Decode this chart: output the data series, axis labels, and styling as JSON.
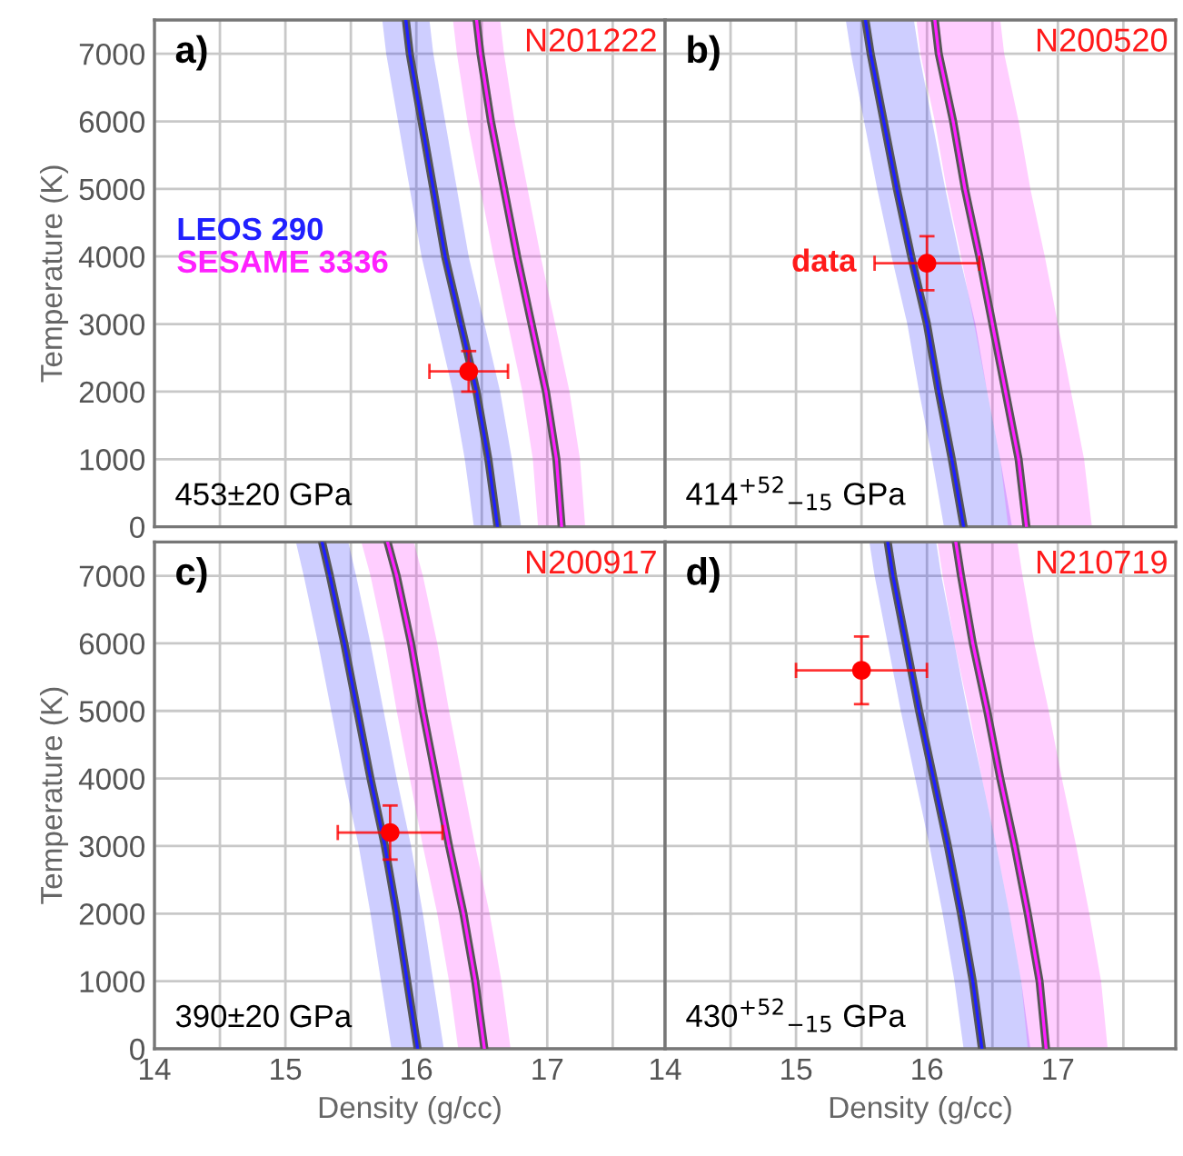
{
  "chart_data": [
    {
      "type": "line",
      "orientation": "horizontal",
      "xlabel": null,
      "ylabel": "Temperature (K)",
      "xlim": [
        14,
        17.9
      ],
      "ylim": [
        0,
        7500
      ],
      "xticks": [
        14,
        {
          "value": 14.5,
          "label": null
        },
        15,
        {
          "value": 15.5,
          "label": null
        },
        16,
        {
          "value": 16.5,
          "label": null
        },
        17,
        {
          "value": 17.5,
          "label": null
        }
      ],
      "yticks": [
        0,
        1000,
        2000,
        3000,
        4000,
        5000,
        6000,
        7000
      ],
      "grid": true,
      "tick_labels": "y",
      "legend": "left",
      "annotations": [
        "a)",
        "N201222",
        "453±20 GPa"
      ],
      "series": [
        {
          "name": "LEOS 290",
          "color": "#2020ff",
          "x": [
            0,
            1000,
            2000,
            3000,
            4000,
            5000,
            6000,
            7000,
            7500
          ],
          "values": [
            16.62,
            16.55,
            16.46,
            16.34,
            16.22,
            16.13,
            16.04,
            15.95,
            15.92
          ],
          "lower": [
            16.44,
            16.37,
            16.28,
            16.16,
            16.04,
            15.95,
            15.86,
            15.77,
            15.74
          ],
          "upper": [
            16.8,
            16.73,
            16.64,
            16.52,
            16.4,
            16.31,
            16.22,
            16.13,
            16.1
          ]
        },
        {
          "name": "SESAME 3336",
          "color": "#ff20ff",
          "x": [
            0,
            1000,
            2000,
            3000,
            4000,
            5000,
            6000,
            7000,
            7500
          ],
          "values": [
            17.11,
            17.07,
            16.99,
            16.88,
            16.77,
            16.67,
            16.57,
            16.49,
            16.46
          ],
          "lower": [
            16.93,
            16.89,
            16.81,
            16.7,
            16.59,
            16.49,
            16.39,
            16.31,
            16.28
          ],
          "upper": [
            17.29,
            17.25,
            17.17,
            17.06,
            16.95,
            16.85,
            16.75,
            16.67,
            16.64
          ]
        },
        {
          "type": "scatter",
          "color": "#ff0000",
          "x": [
            2300
          ],
          "values": [
            16.4
          ],
          "errors": [
            0.3
          ],
          "xerrors": [
            300
          ]
        }
      ]
    },
    {
      "type": "line",
      "orientation": "horizontal",
      "xlim": [
        14,
        17.9
      ],
      "ylim": [
        0,
        7500
      ],
      "xticks": [
        14,
        {
          "value": 14.5,
          "label": null
        },
        15,
        {
          "value": 15.5,
          "label": null
        },
        16,
        {
          "value": 16.5,
          "label": null
        },
        17,
        {
          "value": 17.5,
          "label": null
        }
      ],
      "yticks": [
        0,
        1000,
        2000,
        3000,
        4000,
        5000,
        6000,
        7000
      ],
      "grid": true,
      "tick_labels": false,
      "annotations": [
        "b)",
        "N200520",
        "414$^{+52}$$_{−15}$ GPa",
        {
          "text": "data",
          "x": 16.0,
          "y": 3900
        }
      ],
      "series": [
        {
          "color": "#2020ff",
          "x": [
            0,
            1000,
            2000,
            3000,
            4000,
            5000,
            6000,
            7000,
            7500
          ],
          "values": [
            16.28,
            16.19,
            16.09,
            16.0,
            15.88,
            15.77,
            15.67,
            15.57,
            15.53
          ],
          "lower": [
            16.13,
            16.04,
            15.94,
            15.85,
            15.73,
            15.62,
            15.52,
            15.42,
            15.38
          ],
          "upper": [
            16.65,
            16.56,
            16.46,
            16.37,
            16.25,
            16.14,
            16.04,
            15.94,
            15.9
          ]
        },
        {
          "color": "#ff20ff",
          "x": [
            0,
            1000,
            2000,
            3000,
            4000,
            5000,
            6000,
            7000,
            7500
          ],
          "values": [
            16.76,
            16.7,
            16.6,
            16.5,
            16.4,
            16.29,
            16.2,
            16.09,
            16.06
          ],
          "lower": [
            16.62,
            16.56,
            16.46,
            16.36,
            16.26,
            16.15,
            16.06,
            15.95,
            15.92
          ],
          "upper": [
            17.26,
            17.2,
            17.1,
            17.0,
            16.9,
            16.79,
            16.7,
            16.59,
            16.56
          ]
        },
        {
          "type": "scatter",
          "color": "#ff0000",
          "x": [
            3900
          ],
          "values": [
            16.0
          ],
          "errors": [
            0.4
          ],
          "xerrors": [
            400
          ]
        }
      ]
    },
    {
      "type": "line",
      "orientation": "horizontal",
      "xlabel": "Density (g/cc)",
      "ylabel": "Temperature (K)",
      "xlim": [
        14,
        17.9
      ],
      "ylim": [
        0,
        7500
      ],
      "xticks": [
        14,
        {
          "value": 14.5,
          "label": null
        },
        15,
        {
          "value": 15.5,
          "label": null
        },
        16,
        {
          "value": 16.5,
          "label": null
        },
        17,
        {
          "value": 17.5,
          "label": null
        }
      ],
      "yticks": [
        0,
        1000,
        2000,
        3000,
        4000,
        5000,
        6000,
        7000
      ],
      "grid": true,
      "annotations": [
        "c)",
        "N200917",
        "390±20 GPa"
      ],
      "series": [
        {
          "color": "#2020ff",
          "x": [
            0,
            1000,
            2000,
            3000,
            4000,
            5000,
            6000,
            7000,
            7500
          ],
          "values": [
            16.01,
            15.93,
            15.85,
            15.76,
            15.65,
            15.55,
            15.45,
            15.34,
            15.28
          ],
          "lower": [
            15.81,
            15.73,
            15.65,
            15.56,
            15.45,
            15.35,
            15.25,
            15.14,
            15.08
          ],
          "upper": [
            16.21,
            16.13,
            16.05,
            15.96,
            15.85,
            15.75,
            15.65,
            15.54,
            15.48
          ]
        },
        {
          "color": "#ff20ff",
          "x": [
            0,
            1000,
            2000,
            3000,
            4000,
            5000,
            6000,
            7000,
            7500
          ],
          "values": [
            16.52,
            16.45,
            16.36,
            16.25,
            16.15,
            16.05,
            15.96,
            15.85,
            15.78
          ],
          "lower": [
            16.32,
            16.25,
            16.16,
            16.05,
            15.95,
            15.85,
            15.76,
            15.65,
            15.58
          ],
          "upper": [
            16.72,
            16.65,
            16.56,
            16.45,
            16.35,
            16.25,
            16.16,
            16.05,
            15.98
          ]
        },
        {
          "type": "scatter",
          "color": "#ff0000",
          "x": [
            3200
          ],
          "values": [
            15.8
          ],
          "errors": [
            0.4
          ],
          "xerrors": [
            400
          ]
        }
      ]
    },
    {
      "type": "line",
      "orientation": "horizontal",
      "xlabel": "Density (g/cc)",
      "xlim": [
        14,
        17.9
      ],
      "ylim": [
        0,
        7500
      ],
      "xticks": [
        14,
        {
          "value": 14.5,
          "label": null
        },
        15,
        {
          "value": 15.5,
          "label": null
        },
        16,
        {
          "value": 16.5,
          "label": null
        },
        17,
        {
          "value": 17.5,
          "label": null
        }
      ],
      "yticks": [
        0,
        1000,
        2000,
        3000,
        4000,
        5000,
        6000,
        7000
      ],
      "grid": true,
      "tick_labels": "x",
      "annotations": [
        "d)",
        "N210719",
        "430$^{+52}$$_{−15}$ GPa"
      ],
      "series": [
        {
          "color": "#2020ff",
          "x": [
            0,
            1000,
            2000,
            3000,
            4000,
            5000,
            6000,
            7000,
            7500
          ],
          "values": [
            16.42,
            16.35,
            16.26,
            16.16,
            16.05,
            15.94,
            15.84,
            15.74,
            15.7
          ],
          "lower": [
            16.28,
            16.21,
            16.12,
            16.02,
            15.91,
            15.8,
            15.7,
            15.6,
            15.56
          ],
          "upper": [
            16.79,
            16.72,
            16.63,
            16.53,
            16.42,
            16.31,
            16.21,
            16.11,
            16.07
          ]
        },
        {
          "color": "#ff20ff",
          "x": [
            0,
            1000,
            2000,
            3000,
            4000,
            5000,
            6000,
            7000,
            7500
          ],
          "values": [
            16.91,
            16.86,
            16.77,
            16.67,
            16.56,
            16.46,
            16.35,
            16.26,
            16.22
          ],
          "lower": [
            16.77,
            16.72,
            16.63,
            16.53,
            16.42,
            16.32,
            16.21,
            16.12,
            16.08
          ],
          "upper": [
            17.38,
            17.33,
            17.24,
            17.14,
            17.03,
            16.93,
            16.82,
            16.73,
            16.69
          ]
        },
        {
          "type": "scatter",
          "color": "#ff0000",
          "x": [
            5600
          ],
          "values": [
            15.5
          ],
          "errors": [
            0.5
          ],
          "xerrors": [
            500
          ]
        }
      ]
    }
  ]
}
